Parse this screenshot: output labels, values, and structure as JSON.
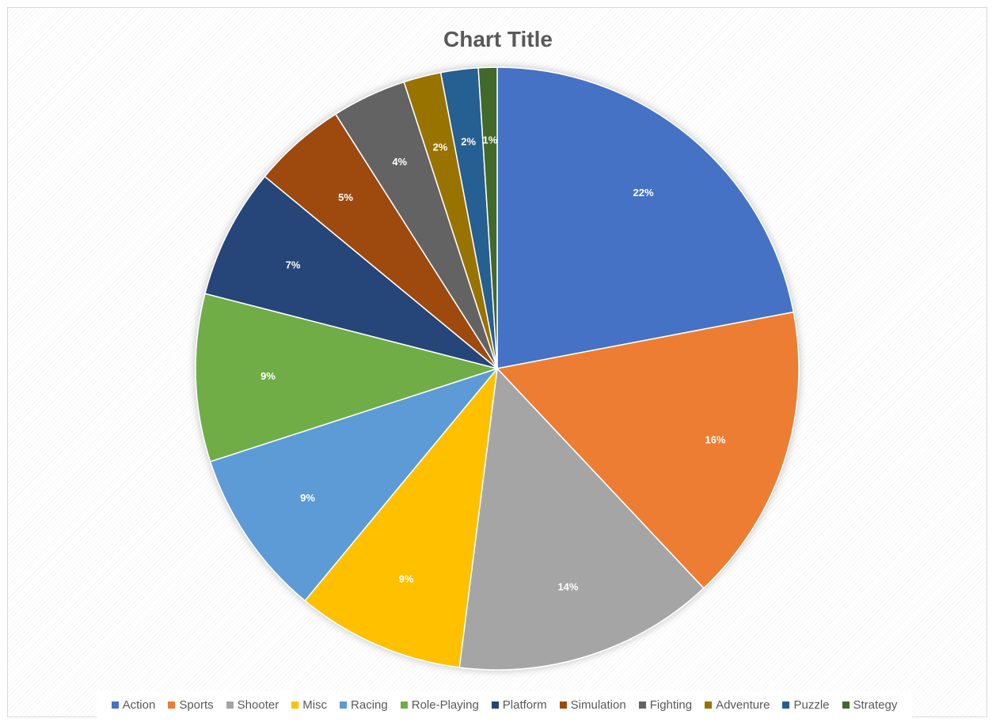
{
  "chart_data": {
    "type": "pie",
    "title": "Chart Title",
    "categories": [
      "Action",
      "Sports",
      "Shooter",
      "Misc",
      "Racing",
      "Role-Playing",
      "Platform",
      "Simulation",
      "Fighting",
      "Adventure",
      "Puzzle",
      "Strategy"
    ],
    "values": [
      22,
      16,
      14,
      9,
      9,
      9,
      7,
      5,
      4,
      2,
      2,
      1
    ],
    "data_labels": [
      "22%",
      "16%",
      "14%",
      "9%",
      "9%",
      "9%",
      "7%",
      "5%",
      "4%",
      "2%",
      "2%",
      "1%"
    ],
    "colors": [
      "#4472C4",
      "#ED7D31",
      "#A5A5A5",
      "#FFC000",
      "#5B9BD5",
      "#70AD47",
      "#264478",
      "#9E480E",
      "#636363",
      "#997300",
      "#255E91",
      "#43682B"
    ],
    "legend_position": "bottom"
  }
}
